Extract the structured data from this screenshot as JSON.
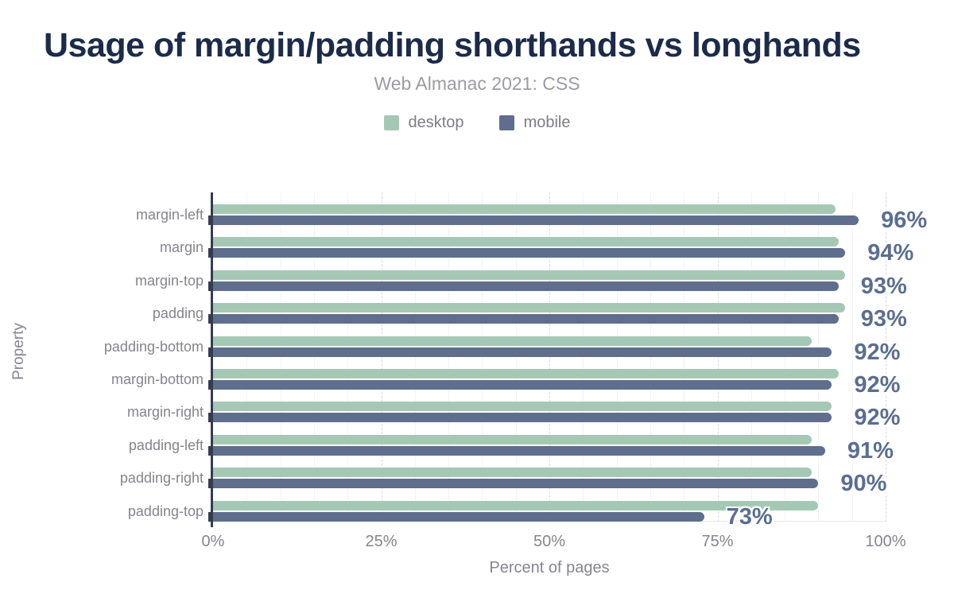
{
  "header": {
    "title": "Usage of margin/padding shorthands vs longhands",
    "subtitle": "Web Almanac 2021: CSS"
  },
  "legend": {
    "items": [
      {
        "label": "desktop",
        "color": "#a5c8b4"
      },
      {
        "label": "mobile",
        "color": "#5f6e8c"
      }
    ]
  },
  "chart_data": {
    "type": "bar",
    "orientation": "horizontal",
    "title": "Usage of margin/padding shorthands vs longhands",
    "subtitle": "Web Almanac 2021: CSS",
    "xlabel": "Percent of pages",
    "ylabel": "Property",
    "xlim": [
      0,
      100
    ],
    "x_ticks": [
      "0%",
      "25%",
      "50%",
      "75%",
      "100%"
    ],
    "x_tick_values": [
      0,
      25,
      50,
      75,
      100
    ],
    "grid": "vertical: minor line every 5%, dashed major line every 25%",
    "legend_position": "top-center",
    "categories": [
      "margin-left",
      "margin",
      "margin-top",
      "padding",
      "padding-bottom",
      "margin-bottom",
      "margin-right",
      "padding-left",
      "padding-right",
      "padding-top"
    ],
    "series": [
      {
        "name": "desktop",
        "color": "#a5c8b4",
        "values": [
          92.5,
          93,
          94,
          94,
          89,
          93,
          92,
          89,
          89,
          90
        ]
      },
      {
        "name": "mobile",
        "color": "#5f6e8c",
        "values": [
          96,
          94,
          93,
          93,
          92,
          92,
          92,
          91,
          90,
          73
        ]
      }
    ],
    "bar_labels": [
      "96%",
      "94%",
      "93%",
      "93%",
      "92%",
      "92%",
      "92%",
      "91%",
      "90%",
      "73%"
    ],
    "bar_label_series": "mobile",
    "colors": {
      "title": "#1c2b4a",
      "subtitle_text": "#9b9ba2",
      "legend_text": "#7d7d85",
      "axis_line": "#343c50",
      "category_text": "#84848c",
      "tick_text": "#85858d",
      "value_label": "#5b6e8f"
    }
  }
}
